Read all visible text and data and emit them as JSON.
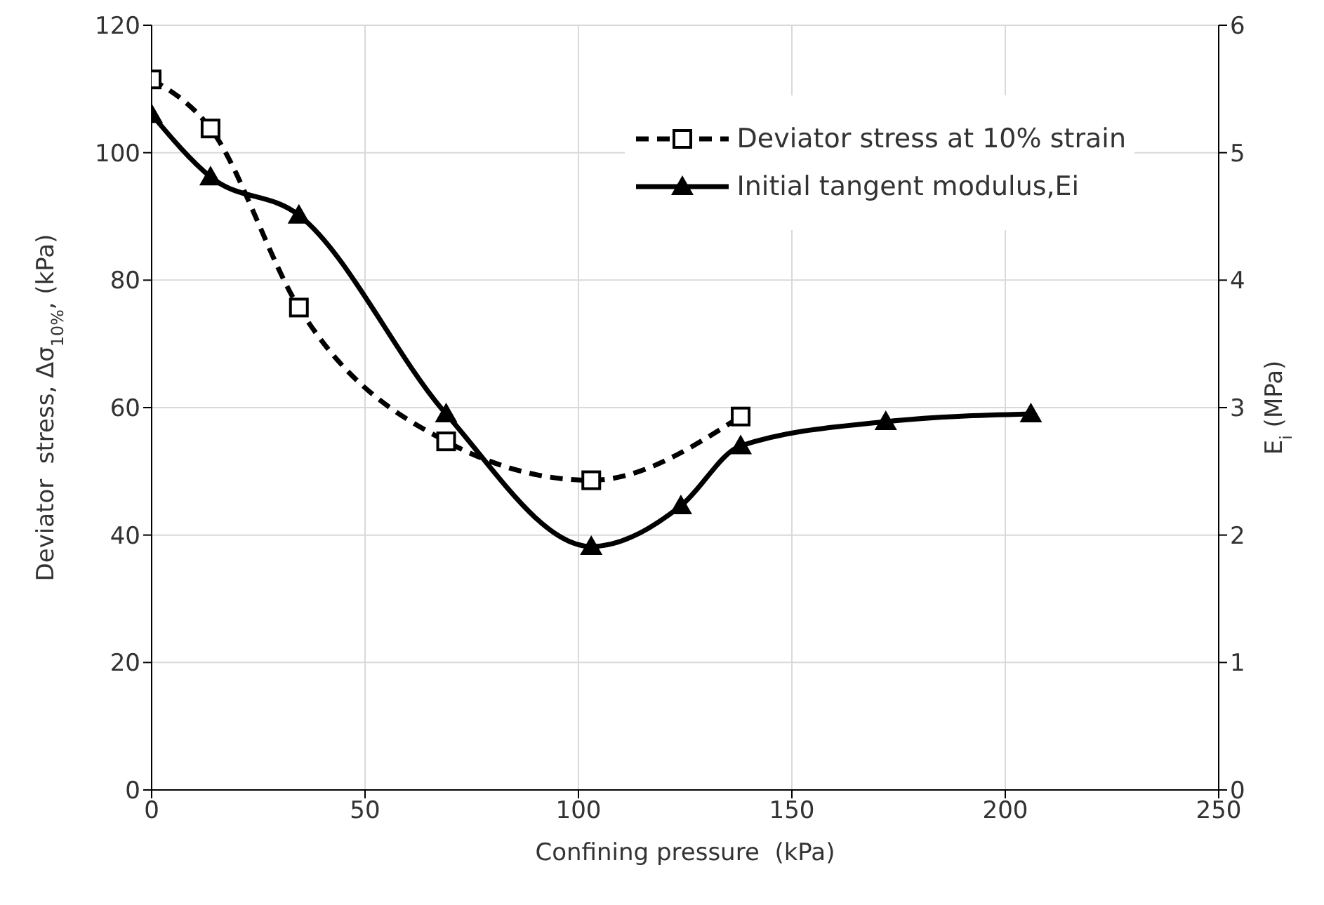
{
  "chart_data": {
    "type": "line",
    "xlabel": "Confining pressure  (kPa)",
    "ylabel": "Deviator  stress, Δσ$_{10%}$, (kPa)",
    "y2label": "E$_{i}$ (MPa)",
    "xlim": [
      0,
      250
    ],
    "xticks": [
      0,
      50,
      100,
      150,
      200,
      250
    ],
    "ylim": [
      0,
      120
    ],
    "yticks": [
      0,
      20,
      40,
      60,
      80,
      100,
      120
    ],
    "y2lim": [
      0,
      6
    ],
    "y2ticks": [
      0,
      1,
      2,
      3,
      4,
      5,
      6
    ],
    "grid": true,
    "legend": "top right",
    "series": [
      {
        "name": "Deviator stress at 10% strain",
        "color": "#000000",
        "marker": "square",
        "line_style": "dashed",
        "x": [
          0,
          13.8,
          34.5,
          69,
          103,
          138
        ],
        "values": [
          111.5,
          103.8,
          75.7,
          54.7,
          48.6,
          58.6
        ]
      },
      {
        "name": "Initial tangent modulus,Ei",
        "color": "#000000",
        "marker": "triangle",
        "line_style": "solid",
        "axis": "y2",
        "x": [
          0,
          13.8,
          34.5,
          69,
          103,
          124,
          138,
          172,
          206
        ],
        "values": [
          5.3,
          4.81,
          4.51,
          2.95,
          1.91,
          2.23,
          2.7,
          2.89,
          2.95
        ]
      }
    ]
  }
}
